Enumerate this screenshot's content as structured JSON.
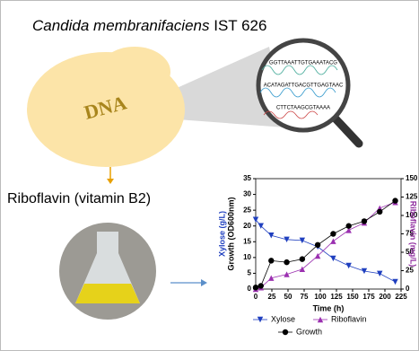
{
  "header": {
    "species": "Candida membranifaciens",
    "strain": "IST 626"
  },
  "product": "Riboflavin (vitamin B2)",
  "sequences": [
    "GGTTAAATTGTGAAATACG",
    "ACATAGATTGACGTTGAGTAAC",
    "CTTCTAAGCGTAAAA"
  ],
  "chart_data": {
    "type": "line",
    "xlabel": "Time (h)",
    "ylabel": [
      "Xylose (g/L)",
      "Growth (OD600nm)"
    ],
    "ylabel_colors": [
      "#1f3fbf",
      "#000000"
    ],
    "y2label": "Riboflavin (mg/L)",
    "y2label_color": "#8e2a9e",
    "x": [
      0,
      8,
      24,
      48,
      72,
      96,
      120,
      144,
      168,
      192,
      216
    ],
    "xlim": [
      0,
      225
    ],
    "xticks": [
      0,
      25,
      50,
      75,
      100,
      125,
      150,
      175,
      200,
      225
    ],
    "ylim": [
      0,
      35
    ],
    "yticks": [
      0,
      5,
      10,
      15,
      20,
      25,
      30,
      35
    ],
    "y2lim": [
      0,
      150
    ],
    "y2ticks": [
      0,
      25,
      50,
      75,
      100,
      125,
      150
    ],
    "series": [
      {
        "name": "Xylose",
        "color": "#1f3fbf",
        "marker": "triangle-down",
        "values": [
          22,
          20,
          17,
          15.7,
          15.4,
          13.4,
          9.7,
          7.4,
          5.7,
          4.9,
          2.3
        ]
      },
      {
        "name": "Riboflavin",
        "color": "#9b30b0",
        "marker": "triangle-up",
        "axis": "y2",
        "values": [
          0,
          2,
          15,
          20,
          27,
          45,
          65,
          80,
          90,
          110,
          118
        ]
      },
      {
        "name": "Growth",
        "color": "#000000",
        "marker": "circle",
        "values": [
          0.5,
          1,
          9,
          8.5,
          9.5,
          14,
          17.5,
          20,
          21.5,
          24.5,
          28
        ]
      }
    ]
  }
}
